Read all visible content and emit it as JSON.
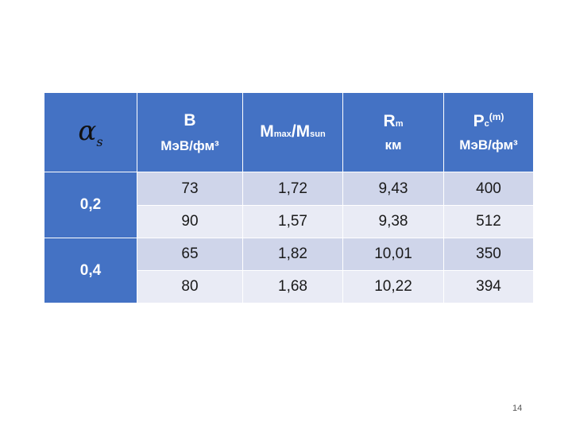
{
  "table": {
    "header": {
      "symbol": {
        "main": "α",
        "sub": "s"
      },
      "b": {
        "title": "B",
        "unit": "МэВ/фм³"
      },
      "mass_ratio": {
        "m1": "M",
        "m1_sub": "max",
        "slash": "/M",
        "m2_sub": "sun"
      },
      "radius": {
        "title": "R",
        "title_sub": "m",
        "unit": "км"
      },
      "pressure": {
        "title": "P",
        "title_sub": "c",
        "title_sup": "(m)",
        "unit": "МэВ/фм³"
      }
    },
    "groups": [
      {
        "label": "0,2",
        "rows": [
          [
            "73",
            "1,72",
            "9,43",
            "400"
          ],
          [
            "90",
            "1,57",
            "9,38",
            "512"
          ]
        ]
      },
      {
        "label": "0,4",
        "rows": [
          [
            "65",
            "1,82",
            "10,01",
            "350"
          ],
          [
            "80",
            "1,68",
            "10,22",
            "394"
          ]
        ]
      }
    ]
  },
  "page_number": "14",
  "colors": {
    "header": "#4472c4",
    "row_dark": "#cfd5ea",
    "row_light": "#e9ebf5"
  }
}
